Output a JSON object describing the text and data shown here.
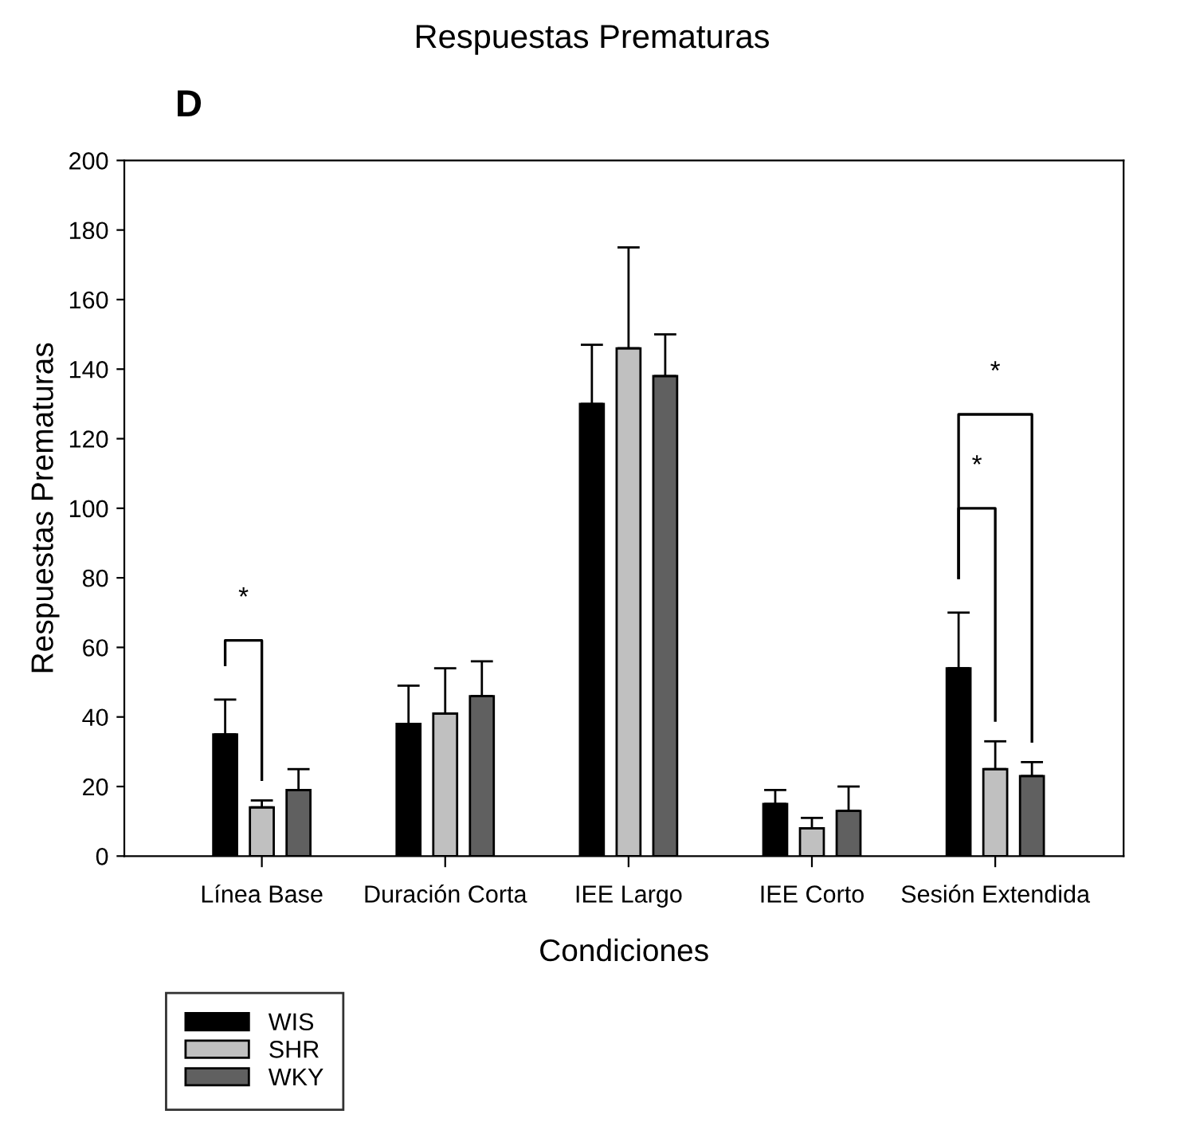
{
  "chart_data": {
    "type": "bar",
    "title": "Respuestas Prematuras",
    "xlabel": "Condiciones",
    "ylabel": "Respuestas Prematuras",
    "categories": [
      "Línea Base",
      "Duración Corta",
      "IEE Largo",
      "IEE Corto",
      "Sesión Extendida"
    ],
    "series": [
      {
        "name": "WIS",
        "color": "#000000",
        "values": [
          35,
          38,
          130,
          15,
          54
        ],
        "errors": [
          [
            35,
            45
          ],
          [
            38,
            49
          ],
          [
            130,
            147
          ],
          [
            15,
            19
          ],
          [
            54,
            70
          ]
        ]
      },
      {
        "name": "SHR",
        "color": "#c0c0c0",
        "values": [
          14,
          41,
          146,
          8,
          25
        ],
        "errors": [
          [
            14,
            16
          ],
          [
            41,
            54
          ],
          [
            146,
            175
          ],
          [
            8,
            11
          ],
          [
            25,
            33
          ]
        ]
      },
      {
        "name": "WKY",
        "color": "#606060",
        "values": [
          19,
          46,
          138,
          13,
          23
        ],
        "errors": [
          [
            19,
            25
          ],
          [
            46,
            56
          ],
          [
            138,
            150
          ],
          [
            13,
            20
          ],
          [
            23,
            27
          ]
        ]
      }
    ],
    "ylim": [
      0,
      200
    ],
    "yticks": [
      0,
      20,
      40,
      60,
      80,
      100,
      120,
      140,
      160,
      180,
      200
    ],
    "grid": false,
    "legend": "bottom left",
    "annotations": [
      "D",
      "*",
      "*",
      "*"
    ]
  }
}
